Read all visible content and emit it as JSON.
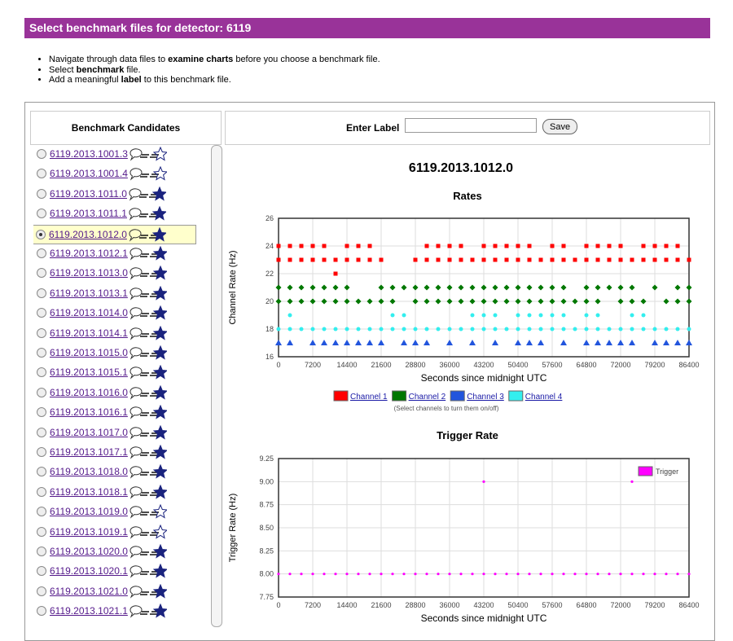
{
  "header": {
    "title": "Select benchmark files for detector: 6119"
  },
  "instructions": [
    [
      {
        "text": "Navigate through data files to ",
        "bold": false
      },
      {
        "text": "examine charts",
        "bold": true
      },
      {
        "text": " before you choose a benchmark file.",
        "bold": false
      }
    ],
    [
      {
        "text": "Select ",
        "bold": false
      },
      {
        "text": "benchmark",
        "bold": true
      },
      {
        "text": " file.",
        "bold": false
      }
    ],
    [
      {
        "text": "Add a meaningful ",
        "bold": false
      },
      {
        "text": "label",
        "bold": true
      },
      {
        "text": " to this benchmark file.",
        "bold": false
      }
    ]
  ],
  "sidebar": {
    "heading": "Benchmark Candidates",
    "selected": 4,
    "files": [
      {
        "name": "6119.2013.1001.3",
        "starred": false
      },
      {
        "name": "6119.2013.1001.4",
        "starred": false
      },
      {
        "name": "6119.2013.1011.0",
        "starred": true
      },
      {
        "name": "6119.2013.1011.1",
        "starred": true
      },
      {
        "name": "6119.2013.1012.0",
        "starred": true
      },
      {
        "name": "6119.2013.1012.1",
        "starred": true
      },
      {
        "name": "6119.2013.1013.0",
        "starred": true
      },
      {
        "name": "6119.2013.1013.1",
        "starred": true
      },
      {
        "name": "6119.2013.1014.0",
        "starred": true
      },
      {
        "name": "6119.2013.1014.1",
        "starred": true
      },
      {
        "name": "6119.2013.1015.0",
        "starred": true
      },
      {
        "name": "6119.2013.1015.1",
        "starred": true
      },
      {
        "name": "6119.2013.1016.0",
        "starred": true
      },
      {
        "name": "6119.2013.1016.1",
        "starred": true
      },
      {
        "name": "6119.2013.1017.0",
        "starred": true
      },
      {
        "name": "6119.2013.1017.1",
        "starred": true
      },
      {
        "name": "6119.2013.1018.0",
        "starred": true
      },
      {
        "name": "6119.2013.1018.1",
        "starred": true
      },
      {
        "name": "6119.2013.1019.0",
        "starred": false
      },
      {
        "name": "6119.2013.1019.1",
        "starred": false
      },
      {
        "name": "6119.2013.1020.0",
        "starred": true
      },
      {
        "name": "6119.2013.1020.1",
        "starred": true
      },
      {
        "name": "6119.2013.1021.0",
        "starred": true
      },
      {
        "name": "6119.2013.1021.1",
        "starred": true
      }
    ]
  },
  "label_form": {
    "label": "Enter Label",
    "button": "Save"
  },
  "file_title": "6119.2013.1012.0",
  "chart_data": [
    {
      "type": "scatter",
      "title": "Rates",
      "x_label": "Seconds since midnight UTC",
      "y_label": "Channel Rate (Hz)",
      "xlim": [
        0,
        86400
      ],
      "xticks": [
        0,
        7200,
        14400,
        21600,
        28800,
        36000,
        43200,
        50400,
        57600,
        64800,
        72000,
        79200,
        86400
      ],
      "ylim": [
        16,
        26
      ],
      "yticks": [
        16,
        18,
        20,
        22,
        24,
        26
      ],
      "grid": true,
      "legend": "bottom",
      "legend_note": "(Select channels to turn them on/off)",
      "series": [
        {
          "name": "Channel 1",
          "color": "#ff0000",
          "marker": "square",
          "x": [
            0,
            2400,
            4800,
            7200,
            9600,
            14400,
            16800,
            19200,
            31200,
            33600,
            36000,
            38400,
            43200,
            45600,
            48000,
            50400,
            52800,
            57600,
            60000,
            64800,
            67200,
            69600,
            72000,
            76800,
            79200,
            81600,
            84000,
            0,
            2400,
            4800,
            7200,
            9600,
            12000,
            14400,
            16800,
            19200,
            21600,
            28800,
            31200,
            33600,
            36000,
            38400,
            40800,
            43200,
            45600,
            48000,
            50400,
            52800,
            55200,
            57600,
            60000,
            62400,
            64800,
            67200,
            69600,
            72000,
            74400,
            76800,
            79200,
            81600,
            84000,
            86400,
            12000
          ],
          "values": [
            24,
            24,
            24,
            24,
            24,
            24,
            24,
            24,
            24,
            24,
            24,
            24,
            24,
            24,
            24,
            24,
            24,
            24,
            24,
            24,
            24,
            24,
            24,
            24,
            24,
            24,
            24,
            23,
            23,
            23,
            23,
            23,
            23,
            23,
            23,
            23,
            23,
            23,
            23,
            23,
            23,
            23,
            23,
            23,
            23,
            23,
            23,
            23,
            23,
            23,
            23,
            23,
            23,
            23,
            23,
            23,
            23,
            23,
            23,
            23,
            23,
            23,
            22
          ]
        },
        {
          "name": "Channel 2",
          "color": "#007700",
          "marker": "diamond",
          "x": [
            0,
            2400,
            4800,
            7200,
            9600,
            12000,
            14400,
            21600,
            24000,
            26400,
            28800,
            31200,
            33600,
            36000,
            38400,
            40800,
            43200,
            45600,
            48000,
            50400,
            52800,
            55200,
            57600,
            60000,
            64800,
            67200,
            69600,
            72000,
            74400,
            79200,
            84000,
            86400,
            0,
            2400,
            4800,
            7200,
            9600,
            12000,
            14400,
            16800,
            19200,
            21600,
            24000,
            28800,
            31200,
            33600,
            36000,
            38400,
            40800,
            43200,
            45600,
            48000,
            50400,
            52800,
            55200,
            57600,
            60000,
            62400,
            64800,
            67200,
            72000,
            74400,
            76800,
            81600,
            84000,
            86400
          ],
          "values": [
            21,
            21,
            21,
            21,
            21,
            21,
            21,
            21,
            21,
            21,
            21,
            21,
            21,
            21,
            21,
            21,
            21,
            21,
            21,
            21,
            21,
            21,
            21,
            21,
            21,
            21,
            21,
            21,
            21,
            21,
            21,
            21,
            20,
            20,
            20,
            20,
            20,
            20,
            20,
            20,
            20,
            20,
            20,
            20,
            20,
            20,
            20,
            20,
            20,
            20,
            20,
            20,
            20,
            20,
            20,
            20,
            20,
            20,
            20,
            20,
            20,
            20,
            20,
            20,
            20,
            20
          ]
        },
        {
          "name": "Channel 3",
          "color": "#2255dd",
          "marker": "triangle",
          "x": [
            0,
            2400,
            7200,
            9600,
            12000,
            14400,
            16800,
            19200,
            21600,
            26400,
            28800,
            31200,
            36000,
            40800,
            45600,
            50400,
            52800,
            55200,
            60000,
            64800,
            67200,
            69600,
            72000,
            74400,
            79200,
            81600,
            84000,
            86400
          ],
          "values": [
            17,
            17,
            17,
            17,
            17,
            17,
            17,
            17,
            17,
            17,
            17,
            17,
            17,
            17,
            17,
            17,
            17,
            17,
            17,
            17,
            17,
            17,
            17,
            17,
            17,
            17,
            17,
            17
          ]
        },
        {
          "name": "Channel 4",
          "color": "#33eeee",
          "marker": "circle",
          "x": [
            2400,
            24000,
            26400,
            40800,
            43200,
            45600,
            50400,
            52800,
            55200,
            57600,
            60000,
            64800,
            67200,
            74400,
            76800,
            0,
            2400,
            4800,
            7200,
            9600,
            12000,
            14400,
            16800,
            19200,
            21600,
            24000,
            26400,
            28800,
            31200,
            33600,
            36000,
            38400,
            40800,
            43200,
            45600,
            48000,
            50400,
            52800,
            55200,
            57600,
            60000,
            62400,
            64800,
            67200,
            69600,
            72000,
            74400,
            76800,
            79200,
            81600,
            84000,
            86400
          ],
          "values": [
            19,
            19,
            19,
            19,
            19,
            19,
            19,
            19,
            19,
            19,
            19,
            19,
            19,
            19,
            19,
            18,
            18,
            18,
            18,
            18,
            18,
            18,
            18,
            18,
            18,
            18,
            18,
            18,
            18,
            18,
            18,
            18,
            18,
            18,
            18,
            18,
            18,
            18,
            18,
            18,
            18,
            18,
            18,
            18,
            18,
            18,
            18,
            18,
            18,
            18,
            18,
            18
          ]
        }
      ]
    },
    {
      "type": "scatter",
      "title": "Trigger Rate",
      "x_label": "Seconds since midnight UTC",
      "y_label": "Trigger Rate (Hz)",
      "xlim": [
        0,
        86400
      ],
      "xticks": [
        0,
        7200,
        14400,
        21600,
        28800,
        36000,
        43200,
        50400,
        57600,
        64800,
        72000,
        79200,
        86400
      ],
      "ylim": [
        7.75,
        9.25
      ],
      "yticks": [
        7.75,
        {
          "value": 8,
          "label": "8.00"
        },
        8.25,
        {
          "value": 8.5,
          "label": "8.50"
        },
        8.75,
        {
          "value": 9,
          "label": "9.00"
        },
        9.25
      ],
      "grid": true,
      "legend": "top-right",
      "series": [
        {
          "name": "Trigger",
          "color": "#ff00ff",
          "marker": "dot",
          "x": [
            0,
            2400,
            4800,
            7200,
            9600,
            12000,
            14400,
            16800,
            19200,
            21600,
            24000,
            26400,
            28800,
            31200,
            33600,
            36000,
            38400,
            40800,
            43200,
            45600,
            48000,
            50400,
            52800,
            55200,
            57600,
            60000,
            62400,
            64800,
            67200,
            69600,
            72000,
            74400,
            76800,
            79200,
            81600,
            84000,
            86400,
            43200,
            74400
          ],
          "values": [
            8,
            8,
            8,
            8,
            8,
            8,
            8,
            8,
            8,
            8,
            8,
            8,
            8,
            8,
            8,
            8,
            8,
            8,
            8,
            8,
            8,
            8,
            8,
            8,
            8,
            8,
            8,
            8,
            8,
            8,
            8,
            8,
            8,
            8,
            8,
            8,
            8,
            9,
            9
          ]
        }
      ]
    }
  ]
}
